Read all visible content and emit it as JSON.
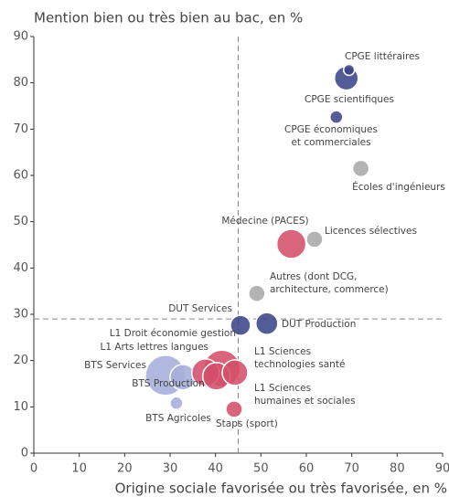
{
  "chart_data": {
    "type": "bubble",
    "title": "Mention bien ou très bien au bac, en %",
    "x_label": "Origine sociale favorisée ou très favorisée, en %",
    "xlim": [
      0,
      90
    ],
    "xticks": [
      0,
      10,
      20,
      30,
      40,
      50,
      60,
      70,
      80,
      90
    ],
    "ylim": [
      0,
      90
    ],
    "yticks": [
      0,
      10,
      20,
      30,
      40,
      50,
      60,
      70,
      80,
      90
    ],
    "x_reference": 45,
    "y_reference": 29,
    "labels": [
      [
        "CPGE scientifiques"
      ],
      [
        "CPGE littéraires"
      ],
      [
        "CPGE économiques",
        "et commerciales"
      ],
      [
        "Écoles d'ingénieurs"
      ],
      [
        "Licences sélectives"
      ],
      [
        "Médecine (PACES)"
      ],
      [
        "Autres (dont DCG,",
        "architecture, commerce)"
      ],
      [
        "DUT Services"
      ],
      [
        "DUT Production"
      ],
      [
        "BTS Services"
      ],
      [
        "BTS Production"
      ],
      [
        "BTS Agricoles"
      ],
      [
        "L1 Droit économie gestion"
      ],
      [
        "L1 Arts lettres langues"
      ],
      [
        "L1 Sciences",
        "humaines et sociales"
      ],
      [
        "L1 Sciences",
        "technologies santé"
      ],
      [
        "Staps (sport)"
      ]
    ],
    "x": [
      68.8,
      69.4,
      66.6,
      72.0,
      61.8,
      56.7,
      49.1,
      45.5,
      51.3,
      29.0,
      32.8,
      31.4,
      41.4,
      37.8,
      40.2,
      44.3,
      44.1
    ],
    "values": [
      81.0,
      82.8,
      72.6,
      61.5,
      46.2,
      45.2,
      34.5,
      27.6,
      28.0,
      16.8,
      16.4,
      10.8,
      18.3,
      17.4,
      16.6,
      17.4,
      9.5
    ],
    "sizes": [
      13,
      6,
      7,
      9,
      9,
      16,
      9,
      11,
      12,
      22,
      14,
      7,
      20,
      15,
      15,
      14,
      9
    ],
    "colors": [
      "#3b4687",
      "#3b4687",
      "#3b4687",
      "#a9a9a9",
      "#a9a9a9",
      "#d4506a",
      "#a9a9a9",
      "#3b4687",
      "#3b4687",
      "#a5aedb",
      "#a5aedb",
      "#a5aedb",
      "#d4506a",
      "#d4506a",
      "#d4506a",
      "#d4506a",
      "#d4506a"
    ]
  }
}
